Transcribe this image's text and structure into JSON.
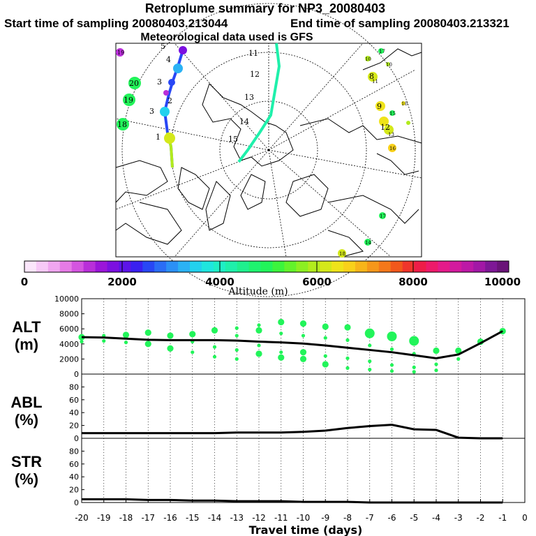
{
  "header": {
    "title": "Retroplume summary for NP3_20080403",
    "start_label": "Start time of sampling 20080403.213044",
    "end_label": "End time of sampling 20080403.213321",
    "met_label": "Meteorological data used is GFS"
  },
  "map": {
    "trajectory_a_labels": [
      "5",
      "4",
      "3",
      "3",
      "2",
      "1"
    ],
    "trajectory_b_labels": [
      "11",
      "12",
      "13",
      "14",
      "15"
    ],
    "cluster_labels_left": [
      "19",
      "20",
      "19",
      "18"
    ],
    "cluster_labels_right": [
      "17",
      "10",
      "10",
      "8",
      "11",
      "9",
      "15",
      "12",
      "13",
      "10",
      "16",
      "17",
      "14",
      "18"
    ]
  },
  "colorbar": {
    "ticks": [
      "0",
      "2000",
      "4000",
      "6000",
      "8000",
      "10000"
    ],
    "label": "Altitude (m)",
    "colors": [
      "#fbe6fb",
      "#f7c9f7",
      "#f0a6f0",
      "#e67be6",
      "#d455e0",
      "#b92fd9",
      "#9b15d9",
      "#7c10e0",
      "#5d14e8",
      "#3a20f0",
      "#2847f5",
      "#2a6df6",
      "#2b90f6",
      "#2bb2f4",
      "#23d1ee",
      "#1fe6df",
      "#1fefc6",
      "#1ff0ab",
      "#1ff08e",
      "#1ff36f",
      "#22f45a",
      "#3cf43d",
      "#63f22b",
      "#8cef22",
      "#b2eb1d",
      "#d4e81a",
      "#efe31a",
      "#f9d11a",
      "#f8b51a",
      "#f6971a",
      "#f4781a",
      "#f2581b",
      "#f0352b",
      "#ee1d48",
      "#ed1a6a",
      "#e51a8a",
      "#d31a9e",
      "#bd19a6",
      "#a218a6",
      "#7e1896",
      "#6a1478"
    ]
  },
  "chart_data": [
    {
      "type": "line",
      "name": "ALT",
      "ylabel": "ALT\n(m)",
      "ylabel_lines": [
        "ALT",
        "(m)"
      ],
      "ylim": [
        0,
        10000
      ],
      "yticks": [
        0,
        2000,
        4000,
        6000,
        8000,
        10000
      ],
      "x": [
        -20,
        -19,
        -18,
        -17,
        -16,
        -15,
        -14,
        -13,
        -12,
        -11,
        -10,
        -9,
        -8,
        -7,
        -6,
        -5,
        -4,
        -3,
        -2,
        -1
      ],
      "series": [
        {
          "name": "mean altitude",
          "color": "#000000",
          "values": [
            4900,
            4850,
            4700,
            4550,
            4500,
            4500,
            4500,
            4450,
            4300,
            4200,
            4050,
            3800,
            3500,
            3200,
            2900,
            2500,
            2100,
            2600,
            4100,
            5700
          ]
        }
      ],
      "points": [
        {
          "x": -20,
          "y": 4900,
          "size": 2
        },
        {
          "x": -20,
          "y": 4300,
          "size": 1
        },
        {
          "x": -19,
          "y": 5100,
          "size": 1
        },
        {
          "x": -19,
          "y": 4400,
          "size": 1
        },
        {
          "x": -18,
          "y": 5200,
          "size": 2
        },
        {
          "x": -18,
          "y": 4200,
          "size": 1
        },
        {
          "x": -17,
          "y": 5500,
          "size": 2
        },
        {
          "x": -17,
          "y": 4000,
          "size": 2
        },
        {
          "x": -16,
          "y": 5100,
          "size": 2
        },
        {
          "x": -16,
          "y": 3400,
          "size": 2
        },
        {
          "x": -15,
          "y": 5300,
          "size": 2
        },
        {
          "x": -15,
          "y": 4300,
          "size": 1
        },
        {
          "x": -15,
          "y": 2900,
          "size": 1
        },
        {
          "x": -14,
          "y": 5800,
          "size": 2
        },
        {
          "x": -14,
          "y": 3600,
          "size": 1
        },
        {
          "x": -14,
          "y": 2300,
          "size": 1
        },
        {
          "x": -13,
          "y": 6100,
          "size": 1
        },
        {
          "x": -13,
          "y": 5100,
          "size": 1
        },
        {
          "x": -13,
          "y": 3200,
          "size": 1
        },
        {
          "x": -13,
          "y": 2000,
          "size": 1
        },
        {
          "x": -12,
          "y": 6500,
          "size": 1
        },
        {
          "x": -12,
          "y": 5800,
          "size": 2
        },
        {
          "x": -12,
          "y": 3800,
          "size": 1
        },
        {
          "x": -12,
          "y": 2700,
          "size": 2
        },
        {
          "x": -11,
          "y": 6900,
          "size": 2
        },
        {
          "x": -11,
          "y": 5400,
          "size": 1
        },
        {
          "x": -11,
          "y": 2900,
          "size": 1
        },
        {
          "x": -11,
          "y": 2200,
          "size": 2
        },
        {
          "x": -10,
          "y": 6700,
          "size": 2
        },
        {
          "x": -10,
          "y": 5100,
          "size": 1
        },
        {
          "x": -10,
          "y": 2900,
          "size": 2
        },
        {
          "x": -10,
          "y": 2000,
          "size": 2
        },
        {
          "x": -9,
          "y": 6300,
          "size": 2
        },
        {
          "x": -9,
          "y": 4800,
          "size": 1
        },
        {
          "x": -9,
          "y": 2400,
          "size": 1
        },
        {
          "x": -9,
          "y": 1300,
          "size": 2
        },
        {
          "x": -8,
          "y": 6200,
          "size": 2
        },
        {
          "x": -8,
          "y": 4500,
          "size": 1
        },
        {
          "x": -8,
          "y": 2100,
          "size": 1
        },
        {
          "x": -8,
          "y": 800,
          "size": 1
        },
        {
          "x": -7,
          "y": 5400,
          "size": 3
        },
        {
          "x": -7,
          "y": 3800,
          "size": 1
        },
        {
          "x": -7,
          "y": 1700,
          "size": 1
        },
        {
          "x": -7,
          "y": 600,
          "size": 1
        },
        {
          "x": -6,
          "y": 5000,
          "size": 3
        },
        {
          "x": -6,
          "y": 3300,
          "size": 1
        },
        {
          "x": -6,
          "y": 1200,
          "size": 1
        },
        {
          "x": -6,
          "y": 400,
          "size": 1
        },
        {
          "x": -5,
          "y": 4400,
          "size": 3
        },
        {
          "x": -5,
          "y": 2700,
          "size": 1
        },
        {
          "x": -5,
          "y": 900,
          "size": 1
        },
        {
          "x": -5,
          "y": 300,
          "size": 1
        },
        {
          "x": -4,
          "y": 3100,
          "size": 2
        },
        {
          "x": -4,
          "y": 1300,
          "size": 1
        },
        {
          "x": -4,
          "y": 500,
          "size": 1
        },
        {
          "x": -3,
          "y": 3100,
          "size": 2
        },
        {
          "x": -3,
          "y": 2000,
          "size": 1
        },
        {
          "x": -2,
          "y": 4300,
          "size": 2
        },
        {
          "x": -1,
          "y": 5700,
          "size": 2
        }
      ]
    },
    {
      "type": "line",
      "name": "ABL",
      "ylabel": "ABL\n(%)",
      "ylabel_lines": [
        "ABL",
        "(%)"
      ],
      "ylim": [
        0,
        100
      ],
      "yticks": [
        0,
        20,
        40,
        60,
        80
      ],
      "x": [
        -20,
        -19,
        -18,
        -17,
        -16,
        -15,
        -14,
        -13,
        -12,
        -11,
        -10,
        -9,
        -8,
        -7,
        -6,
        -5,
        -4,
        -3,
        -2,
        -1
      ],
      "series": [
        {
          "name": "ABL fraction",
          "color": "#000000",
          "values": [
            8,
            8,
            8,
            8,
            8,
            8,
            8,
            9,
            9,
            9,
            10,
            12,
            16,
            19,
            21,
            14,
            13,
            1,
            0,
            0
          ]
        }
      ]
    },
    {
      "type": "line",
      "name": "STR",
      "ylabel": "STR\n(%)",
      "ylabel_lines": [
        "STR",
        "(%)"
      ],
      "ylim": [
        0,
        100
      ],
      "yticks": [
        0,
        20,
        40,
        60,
        80
      ],
      "xlabel": "Travel time (days)",
      "xtick_labels": [
        "-20",
        "-19",
        "-18",
        "-17",
        "-16",
        "-15",
        "-14",
        "-13",
        "-12",
        "-11",
        "-10",
        "-9",
        "-8",
        "-7",
        "-6",
        "-5",
        "-4",
        "-3",
        "-2",
        "-1",
        "0"
      ],
      "x": [
        -20,
        -19,
        -18,
        -17,
        -16,
        -15,
        -14,
        -13,
        -12,
        -11,
        -10,
        -9,
        -8,
        -7,
        -6,
        -5,
        -4,
        -3,
        -2,
        -1
      ],
      "series": [
        {
          "name": "STR fraction",
          "color": "#000000",
          "values": [
            5,
            5,
            5,
            4,
            4,
            3,
            3,
            2,
            2,
            2,
            1,
            1,
            1,
            0,
            0,
            0,
            0,
            0,
            0,
            0
          ]
        }
      ]
    }
  ]
}
